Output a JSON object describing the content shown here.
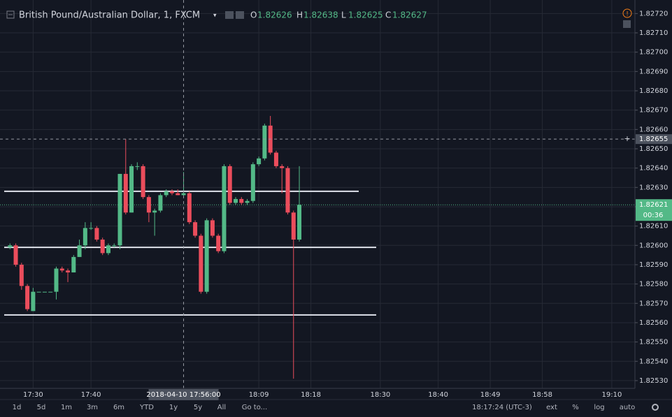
{
  "chart_data": {
    "type": "candlestick",
    "title": "British Pound/Australian Dollar, 1, FXCM",
    "readout": {
      "labels": [
        "O",
        "H",
        "L",
        "C"
      ],
      "values": [
        1.82626,
        1.82638,
        1.82625,
        1.82627
      ]
    },
    "x": [
      "17:26",
      "17:27",
      "17:28",
      "17:29",
      "17:30",
      "17:31",
      "17:32",
      "17:33",
      "17:34",
      "17:35",
      "17:36",
      "17:37",
      "17:38",
      "17:39",
      "17:40",
      "17:41",
      "17:42",
      "17:43",
      "17:44",
      "17:45",
      "17:46",
      "17:47",
      "17:48",
      "17:49",
      "17:50",
      "17:51",
      "17:52",
      "17:53",
      "17:54",
      "17:55",
      "17:56",
      "17:57",
      "17:58",
      "17:59",
      "18:00",
      "18:01",
      "18:02",
      "18:03",
      "18:04",
      "18:05",
      "18:06",
      "18:07",
      "18:08",
      "18:09",
      "18:10",
      "18:11",
      "18:12",
      "18:13",
      "18:14",
      "18:15",
      "18:16"
    ],
    "open": [
      1.82599,
      1.826,
      1.8259,
      1.82579,
      1.82566,
      1.82576,
      1.82576,
      1.82576,
      1.82576,
      1.82588,
      1.82587,
      1.82586,
      1.82594,
      1.826,
      1.82609,
      1.82609,
      1.82603,
      1.82596,
      1.826,
      1.826,
      1.82637,
      1.82617,
      1.82641,
      1.82641,
      1.82625,
      1.82617,
      1.82618,
      1.82626,
      1.82628,
      1.82627,
      1.82626,
      1.82627,
      1.82612,
      1.82605,
      1.82576,
      1.82613,
      1.82605,
      1.82597,
      1.82641,
      1.82622,
      1.82624,
      1.82622,
      1.82623,
      1.82642,
      1.82645,
      1.82662,
      1.82648,
      1.82641,
      1.8264,
      1.82617,
      1.82603
    ],
    "high": [
      1.82601,
      1.82601,
      1.82591,
      1.8258,
      1.82578,
      1.82576,
      1.82576,
      1.82576,
      1.82589,
      1.82589,
      1.82588,
      1.82595,
      1.82603,
      1.82612,
      1.82612,
      1.8261,
      1.82604,
      1.82601,
      1.82601,
      1.82637,
      1.82655,
      1.82642,
      1.82643,
      1.82642,
      1.82626,
      1.82619,
      1.82627,
      1.82629,
      1.82629,
      1.82629,
      1.82638,
      1.82628,
      1.82613,
      1.82606,
      1.82614,
      1.82614,
      1.82606,
      1.82642,
      1.82642,
      1.82625,
      1.82625,
      1.82624,
      1.82643,
      1.82646,
      1.82663,
      1.82667,
      1.82649,
      1.82642,
      1.82641,
      1.82618,
      1.82641
    ],
    "low": [
      1.82598,
      1.82589,
      1.82577,
      1.82566,
      1.82566,
      1.82576,
      1.82576,
      1.82576,
      1.82572,
      1.82586,
      1.82581,
      1.82586,
      1.82594,
      1.82598,
      1.82608,
      1.82602,
      1.82595,
      1.82595,
      1.82599,
      1.82598,
      1.82616,
      1.82617,
      1.82639,
      1.82624,
      1.82612,
      1.82605,
      1.82617,
      1.82625,
      1.82626,
      1.82626,
      1.82625,
      1.82611,
      1.82604,
      1.82575,
      1.82575,
      1.82604,
      1.82596,
      1.82596,
      1.82621,
      1.82621,
      1.82621,
      1.82621,
      1.82622,
      1.82641,
      1.82644,
      1.82647,
      1.8264,
      1.82627,
      1.82616,
      1.82531,
      1.82602
    ],
    "close": [
      1.826,
      1.8259,
      1.82579,
      1.82567,
      1.82576,
      1.82576,
      1.82576,
      1.82576,
      1.82588,
      1.82587,
      1.82586,
      1.82594,
      1.826,
      1.82609,
      1.82609,
      1.82603,
      1.82596,
      1.826,
      1.826,
      1.82637,
      1.82617,
      1.82641,
      1.82641,
      1.82625,
      1.82617,
      1.82618,
      1.82626,
      1.82628,
      1.82627,
      1.82626,
      1.82627,
      1.82612,
      1.82605,
      1.82576,
      1.82613,
      1.82605,
      1.82597,
      1.82641,
      1.82622,
      1.82624,
      1.82622,
      1.82623,
      1.82642,
      1.82645,
      1.82662,
      1.82648,
      1.82641,
      1.8264,
      1.82617,
      1.82603,
      1.82621
    ],
    "up_color": "#53b987",
    "down_color": "#eb4d5c",
    "xlim": [
      "17:25",
      "19:14"
    ],
    "xticks": [
      "17:30",
      "17:40",
      "18:09",
      "18:18",
      "18:30",
      "18:40",
      "18:49",
      "18:58",
      "19:10"
    ],
    "ylim": [
      1.82526,
      1.82727
    ],
    "yticks": [
      {
        "value": 1.8253,
        "label": "1.82530"
      },
      {
        "value": 1.8254,
        "label": "1.82540"
      },
      {
        "value": 1.8255,
        "label": "1.82550"
      },
      {
        "value": 1.8256,
        "label": "1.82560"
      },
      {
        "value": 1.8257,
        "label": "1.82570"
      },
      {
        "value": 1.8258,
        "label": "1.82580"
      },
      {
        "value": 1.8259,
        "label": "1.82590"
      },
      {
        "value": 1.826,
        "label": "1.82600"
      },
      {
        "value": 1.8261,
        "label": "1.82610"
      },
      {
        "value": 1.8262,
        "label": "1.82620"
      },
      {
        "value": 1.8263,
        "label": "1.82630"
      },
      {
        "value": 1.8264,
        "label": "1.82640"
      },
      {
        "value": 1.8265,
        "label": "1.82650"
      },
      {
        "value": 1.8266,
        "label": "1.82660"
      },
      {
        "value": 1.8267,
        "label": "1.82670"
      },
      {
        "value": 1.8268,
        "label": "1.82680"
      },
      {
        "value": 1.8269,
        "label": "1.82690"
      },
      {
        "value": 1.827,
        "label": "1.82700"
      },
      {
        "value": 1.8271,
        "label": "1.82710"
      },
      {
        "value": 1.8272,
        "label": "1.82720"
      }
    ],
    "grid": true,
    "levels": [
      1.82628,
      1.82599,
      1.82564
    ],
    "crosshair": {
      "time": "17:56",
      "time_label": "2018-04-10 17:56:00",
      "price": 1.82655
    },
    "last_price": 1.82621,
    "countdown": "00:36"
  },
  "toolbar": {
    "ranges": [
      "1d",
      "5d",
      "1m",
      "3m",
      "6m",
      "YTD",
      "1y",
      "5y",
      "All",
      "Go to..."
    ],
    "clock": "18:17:24 (UTC-3)",
    "options": [
      "ext",
      "%",
      "log",
      "auto"
    ]
  }
}
